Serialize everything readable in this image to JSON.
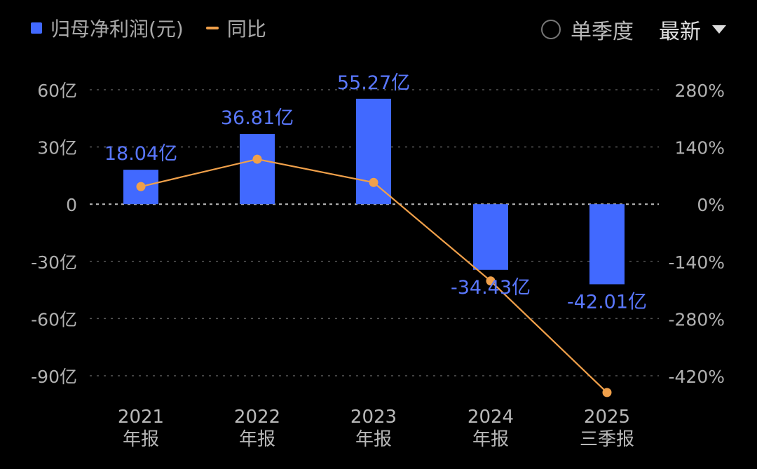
{
  "legend": {
    "series_bar": "归母净利润(元)",
    "series_line": "同比"
  },
  "controls": {
    "single_quarter": "单季度",
    "latest": "最新"
  },
  "colors": {
    "bar": "#4169ff",
    "line": "#f0a04a",
    "label": "#5a78ff",
    "grid": "#555555",
    "zero": "#bbbbbb"
  },
  "chart_data": {
    "type": "bar",
    "categories": [
      [
        "2021",
        "年报"
      ],
      [
        "2022",
        "年报"
      ],
      [
        "2023",
        "年报"
      ],
      [
        "2024",
        "年报"
      ],
      [
        "2025",
        "三季报"
      ]
    ],
    "series": [
      {
        "name": "归母净利润(元)",
        "type": "bar",
        "axis": "left",
        "unit": "亿",
        "values": [
          18.04,
          36.81,
          55.27,
          -34.43,
          -42.01
        ],
        "data_labels": [
          "18.04亿",
          "36.81亿",
          "55.27亿",
          "-34.43亿",
          "-42.01亿"
        ]
      },
      {
        "name": "同比",
        "type": "line",
        "axis": "right",
        "unit": "%",
        "values": [
          43,
          110,
          53,
          -188,
          -461
        ]
      }
    ],
    "left_axis": {
      "ylim": [
        -90,
        60
      ],
      "ticks": [
        60,
        30,
        0,
        -30,
        -60,
        -90
      ],
      "tick_labels": [
        "60亿",
        "30亿",
        "0",
        "-30亿",
        "-60亿",
        "-90亿"
      ]
    },
    "right_axis": {
      "ylim": [
        -420,
        280
      ],
      "ticks": [
        280,
        140,
        0,
        -140,
        -280,
        -420
      ],
      "tick_labels": [
        "280%",
        "140%",
        "0%",
        "-140%",
        "-280%",
        "-420%"
      ]
    },
    "grid": true,
    "legend_position": "top-left"
  }
}
